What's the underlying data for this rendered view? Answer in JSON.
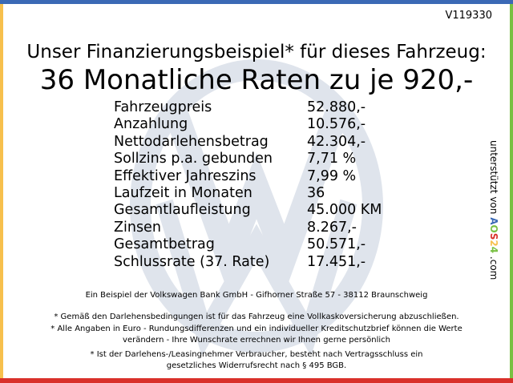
{
  "colors": {
    "top": "#3b69b5",
    "left": "#f7c04d",
    "right": "#79c043",
    "bottom": "#d9302a",
    "watermark": "#dfe4ec"
  },
  "watermark_icon": "vw-logo-icon",
  "vehicle_id": "V119330",
  "title_line1": "Unser Finanzierungsbeispiel* für dieses Fahrzeug:",
  "title_line2": "36 Monatliche Raten zu je 920,-",
  "rows": [
    {
      "label": "Fahrzeugpreis",
      "value": "52.880,-"
    },
    {
      "label": "Anzahlung",
      "value": "10.576,-"
    },
    {
      "label": "Nettodarlehensbetrag",
      "value": "42.304,-"
    },
    {
      "label": "Sollzins p.a. gebunden",
      "value": "7,71 %"
    },
    {
      "label": "Effektiver Jahreszins",
      "value": "7,99 %"
    },
    {
      "label": "Laufzeit in Monaten",
      "value": "36"
    },
    {
      "label": "Gesamtlaufleistung",
      "value": "45.000 KM"
    },
    {
      "label": "Zinsen",
      "value": "8.267,-"
    },
    {
      "label": "Gesamtbetrag",
      "value": "50.571,-"
    },
    {
      "label": "Schlussrate (37. Rate)",
      "value": "17.451,-"
    }
  ],
  "bank_line": "Ein Beispiel der Volkswagen Bank GmbH - Gifhorner Straße 57 - 38112 Braunschweig",
  "footnotes": [
    "* Gemäß den Darlehensbedingungen ist für das Fahrzeug eine Vollkaskoversicherung abzuschließen.",
    "* Alle Angaben in Euro - Rundungsdifferenzen und ein individueller Kreditschutzbrief können die Werte verändern - Ihre Wunschrate errechnen wir Ihnen gerne persönlich",
    "* Ist der Darlehens-/Leasingnehmer Verbraucher, besteht nach Vertragsschluss ein gesetzliches Widerrufsrecht nach § 495 BGB."
  ],
  "side": {
    "prefix": "unterstützt von",
    "brand": [
      "A",
      "O",
      "S",
      "2",
      "4"
    ],
    "brand_colors": [
      "#3b69b5",
      "#79c043",
      "#d9302a",
      "#f7c04d",
      "#79c043"
    ],
    "suffix": ".com"
  }
}
